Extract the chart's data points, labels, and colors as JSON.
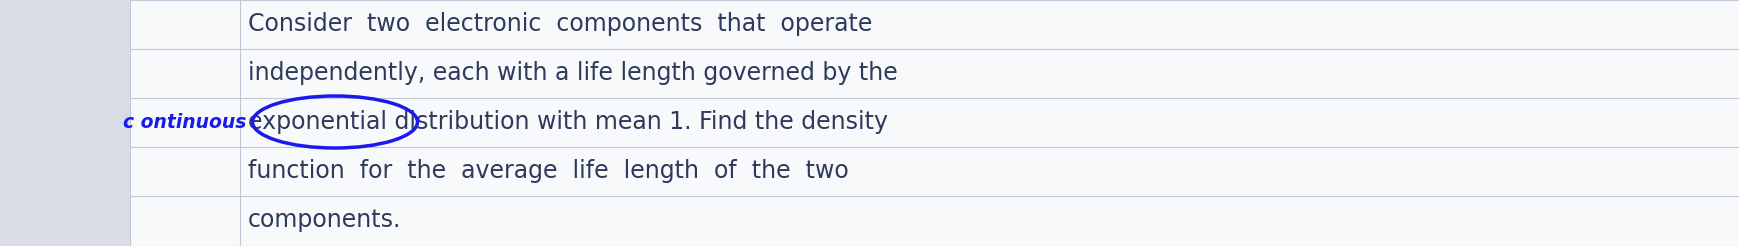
{
  "background_color": "#f0f2f5",
  "main_area_color": "#f5f6f8",
  "line_color": "#c0c8d8",
  "text_color": "#2d3a5c",
  "side_label": "c ontinuous",
  "side_label_color": "#1a1aee",
  "main_text_lines": [
    "Consider  two  electronic  components  that  operate",
    "independently, each with a life length governed by the",
    "exponential distribution with mean 1. Find the density",
    "function  for  the  average  life  length  of  the  two",
    "components."
  ],
  "font_size_main": 17,
  "font_size_side": 13.5,
  "ellipse_color": "#1a1aee",
  "fig_width": 17.4,
  "fig_height": 2.46,
  "dpi": 100
}
